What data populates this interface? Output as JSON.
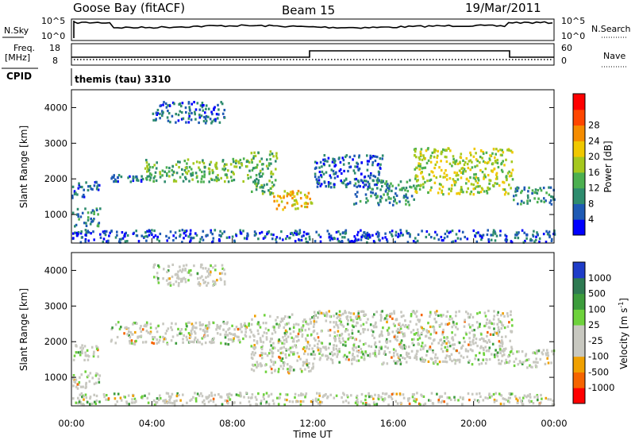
{
  "header": {
    "station": "Goose Bay (fitACF)",
    "beam": "Beam 15",
    "date": "19/Mar/2011"
  },
  "panels": {
    "noise": {
      "left_label": "N.Sky",
      "right_label": "N.Search",
      "left_ticks": [
        "10^5",
        "10^0"
      ],
      "right_ticks": [
        "10^5",
        "10^0"
      ]
    },
    "freq": {
      "left_label_1": "Freq.",
      "left_label_2": "[MHz]",
      "left_ticks": [
        "18",
        "8"
      ],
      "right_label": "Nave",
      "right_ticks": [
        "60",
        "0"
      ]
    },
    "cpid": {
      "left_label": "CPID",
      "text": "themis (tau) 3310"
    }
  },
  "chart_data": [
    {
      "type": "heatmap",
      "name": "power",
      "ylabel": "Slant Range [km]",
      "ylim": [
        200,
        4500
      ],
      "yticks": [
        "1000",
        "2000",
        "3000",
        "4000"
      ],
      "xlim": [
        0,
        24
      ],
      "colorbar": {
        "label": "Power [dB]",
        "ticks": [
          "4",
          "8",
          "12",
          "16",
          "20",
          "24",
          "28"
        ],
        "colors": [
          "#0000ff",
          "#1e5ab4",
          "#2e8c6e",
          "#4cb050",
          "#a5c81e",
          "#f0c800",
          "#f58c00",
          "#ff4600",
          "#ff0000"
        ]
      },
      "echo_regions": [
        {
          "t0": 0.0,
          "t1": 1.4,
          "r0": 700,
          "r1": 1200,
          "level": 2
        },
        {
          "t0": 0.0,
          "t1": 1.4,
          "r0": 1500,
          "r1": 1950,
          "level": 1
        },
        {
          "t0": 1.9,
          "t1": 3.5,
          "r0": 1950,
          "r1": 2150,
          "level": 1
        },
        {
          "t0": 3.5,
          "t1": 8.9,
          "r0": 1950,
          "r1": 2600,
          "level": 3
        },
        {
          "t0": 4.0,
          "t1": 7.6,
          "r0": 3600,
          "r1": 4200,
          "level": 1
        },
        {
          "t0": 8.9,
          "t1": 10.2,
          "r0": 1600,
          "r1": 2800,
          "level": 3
        },
        {
          "t0": 9.9,
          "t1": 12.0,
          "r0": 1150,
          "r1": 1700,
          "level": 5
        },
        {
          "t0": 12.0,
          "t1": 15.5,
          "r0": 1800,
          "r1": 2700,
          "level": 1
        },
        {
          "t0": 14.0,
          "t1": 17.0,
          "r0": 1300,
          "r1": 2000,
          "level": 2
        },
        {
          "t0": 17.0,
          "t1": 21.9,
          "r0": 1600,
          "r1": 2900,
          "level": 4
        },
        {
          "t0": 21.9,
          "t1": 24.0,
          "r0": 1300,
          "r1": 1800,
          "level": 2
        },
        {
          "t0": 0.0,
          "t1": 24.0,
          "r0": 250,
          "r1": 600,
          "level": 1
        }
      ]
    },
    {
      "type": "heatmap",
      "name": "velocity",
      "ylabel": "Slant Range [km]",
      "ylim": [
        200,
        4500
      ],
      "yticks": [
        "1000",
        "2000",
        "3000",
        "4000"
      ],
      "xlim": [
        0,
        24
      ],
      "xticks": [
        "00:00",
        "04:00",
        "08:00",
        "12:00",
        "16:00",
        "20:00",
        "00:00"
      ],
      "xlabel": "Time UT",
      "colorbar": {
        "label": "Velocity [m s^-1]",
        "ticks": [
          "1000",
          "500",
          "100",
          "25",
          "-25",
          "-100",
          "-500",
          "-1000"
        ],
        "colors": [
          "#1e3cc8",
          "#2e7a52",
          "#3c9c3c",
          "#6ed23c",
          "#c8c8c0",
          "#c8c8c0",
          "#f0a000",
          "#f56400",
          "#ff0000"
        ]
      },
      "echo_regions": [
        {
          "t0": 0.0,
          "t1": 1.4,
          "r0": 700,
          "r1": 1200,
          "level": 4
        },
        {
          "t0": 0.0,
          "t1": 1.4,
          "r0": 1500,
          "r1": 1950,
          "level": 4
        },
        {
          "t0": 1.9,
          "t1": 8.9,
          "r0": 1950,
          "r1": 2600,
          "level": 4
        },
        {
          "t0": 4.0,
          "t1": 7.6,
          "r0": 3600,
          "r1": 4200,
          "level": 4
        },
        {
          "t0": 8.9,
          "t1": 12.0,
          "r0": 1150,
          "r1": 2800,
          "level": 4
        },
        {
          "t0": 12.0,
          "t1": 21.9,
          "r0": 1400,
          "r1": 2900,
          "level": 4
        },
        {
          "t0": 21.9,
          "t1": 24.0,
          "r0": 1300,
          "r1": 1800,
          "level": 4
        },
        {
          "t0": 0.0,
          "t1": 24.0,
          "r0": 250,
          "r1": 600,
          "level": 3
        }
      ]
    }
  ]
}
